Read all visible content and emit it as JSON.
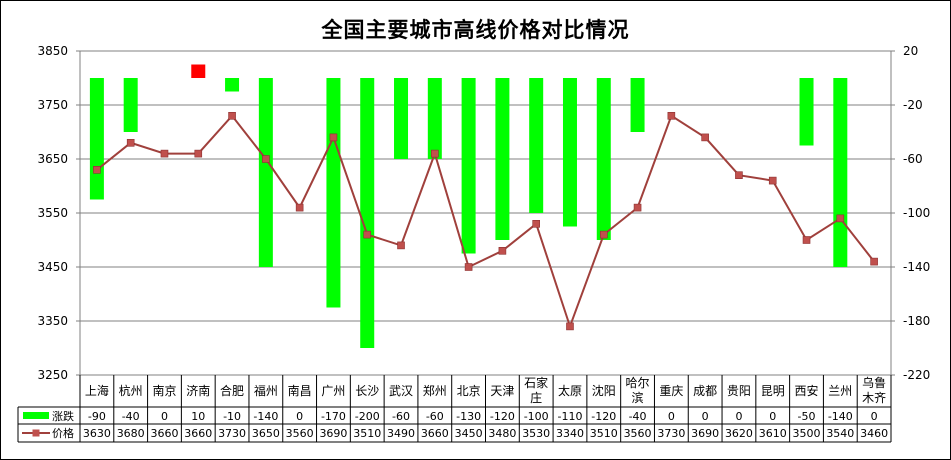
{
  "chart_data": {
    "type": "bar+line",
    "title": "全国主要城市高线价格对比情况",
    "categories": [
      [
        "上海"
      ],
      [
        "杭州"
      ],
      [
        "南京"
      ],
      [
        "济南"
      ],
      [
        "合肥"
      ],
      [
        "福州"
      ],
      [
        "南昌"
      ],
      [
        "广州"
      ],
      [
        "长沙"
      ],
      [
        "武汉"
      ],
      [
        "郑州"
      ],
      [
        "北京"
      ],
      [
        "天津"
      ],
      [
        "石家",
        "庄"
      ],
      [
        "太原"
      ],
      [
        "沈阳"
      ],
      [
        "哈尔",
        "滨"
      ],
      [
        "重庆"
      ],
      [
        "成都"
      ],
      [
        "贵阳"
      ],
      [
        "昆明"
      ],
      [
        "西安"
      ],
      [
        "兰州"
      ],
      [
        "乌鲁",
        "木齐"
      ]
    ],
    "y_left": {
      "min": 3250,
      "max": 3850,
      "ticks": [
        3850,
        3750,
        3650,
        3550,
        3450,
        3350,
        3250
      ]
    },
    "y_right": {
      "min": -220,
      "max": 20,
      "ticks": [
        20,
        -20,
        -60,
        -100,
        -140,
        -180,
        -220
      ]
    },
    "grid": true,
    "legend": "table-below",
    "series": [
      {
        "name": "涨跌",
        "type": "bar",
        "axis": "right",
        "color": "#00ff00",
        "highlight_color": "#ff0000",
        "values": [
          -90,
          -40,
          0,
          10,
          -10,
          -140,
          0,
          -170,
          -200,
          -60,
          -60,
          -130,
          -120,
          -100,
          -110,
          -120,
          -40,
          0,
          0,
          0,
          0,
          -50,
          -140,
          0
        ]
      },
      {
        "name": "价格",
        "type": "line",
        "axis": "left",
        "color": "#a0403c",
        "values": [
          3630,
          3680,
          3660,
          3660,
          3730,
          3650,
          3560,
          3690,
          3510,
          3490,
          3660,
          3450,
          3480,
          3530,
          3340,
          3510,
          3560,
          3730,
          3690,
          3620,
          3610,
          3500,
          3540,
          3460
        ]
      }
    ]
  }
}
